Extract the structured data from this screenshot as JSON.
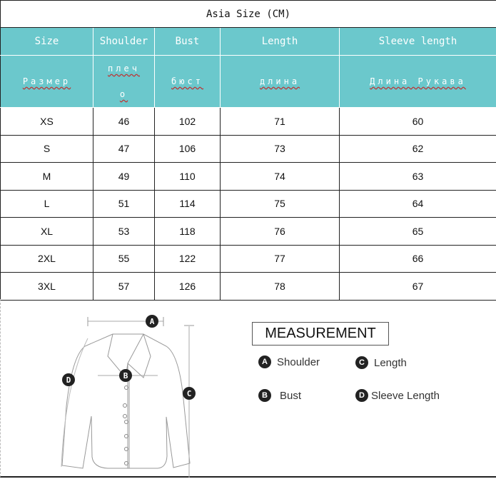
{
  "title": "Asia Size (CM)",
  "headers": [
    "Size",
    "Shoulder",
    "Bust",
    "Length",
    "Sleeve length"
  ],
  "headers_ru": [
    "Размер",
    "плеч о",
    "бюст",
    "длина",
    "Длина Рукава"
  ],
  "header_color": "#6bc8cc",
  "rows": [
    [
      "XS",
      "46",
      "102",
      "71",
      "60"
    ],
    [
      "S",
      "47",
      "106",
      "73",
      "62"
    ],
    [
      "M",
      "49",
      "110",
      "74",
      "63"
    ],
    [
      "L",
      "51",
      "114",
      "75",
      "64"
    ],
    [
      "XL",
      "53",
      "118",
      "76",
      "65"
    ],
    [
      "2XL",
      "55",
      "122",
      "77",
      "66"
    ],
    [
      "3XL",
      "57",
      "126",
      "78",
      "67"
    ]
  ],
  "measurement": {
    "title": "MEASUREMENT",
    "items": [
      {
        "letter": "A",
        "label": "Shoulder"
      },
      {
        "letter": "C",
        "label": "Length"
      },
      {
        "letter": "B",
        "label": "Bust"
      },
      {
        "letter": "D",
        "label": "Sleeve Length"
      }
    ]
  },
  "diagram_letters": [
    "A",
    "B",
    "C",
    "D"
  ]
}
